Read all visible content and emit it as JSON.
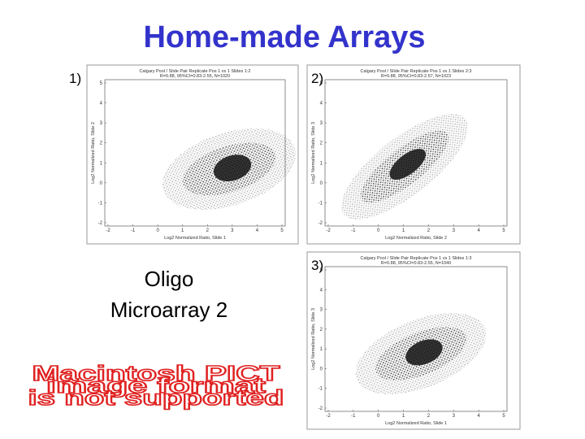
{
  "title": "Home-made Arrays",
  "panels": [
    {
      "label": "1)",
      "plot_title": [
        "Calgary Pool / Slide Pair Replicate Pos 1 vs 1 Slides 1:2",
        "R=0.88, 95%CI=0.83-2.55, N=1020"
      ],
      "x_label": "Log2 Normalized Ratio, Slide 1",
      "y_label": "Log2 Normalized Ratio, Slide 2"
    },
    {
      "label": "2)",
      "plot_title": [
        "Calgary Pool / Slide Pair Replicate Pos 1 vs 1 Slides 2:3",
        "R=0.88, 95%CI=0.83-2.57, N=1023"
      ],
      "x_label": "Log2 Normalized Ratio, Slide 2",
      "y_label": "Log2 Normalized Ratio, Slide 3"
    },
    {
      "label": "3)",
      "plot_title": [
        "Calgary Pool / Slide Pair Replicate Pos 1 vs 1 Slides 1:3",
        "R=0.88, 95%CI=0.83-2.55, N=1040"
      ],
      "x_label": "Log2 Normalized Ratio, Slide 1",
      "y_label": "Log2 Normalized Ratio, Slide 3"
    }
  ],
  "xticks": [
    -2,
    -1,
    0,
    1,
    2,
    3,
    4,
    5
  ],
  "yticks": [
    -2,
    -1,
    0,
    1,
    2,
    3,
    4,
    5
  ],
  "caption": [
    "Oligo",
    "Microarray 2"
  ],
  "placeholder": [
    "Macintosh PICT",
    "image format",
    "is not supported"
  ]
}
